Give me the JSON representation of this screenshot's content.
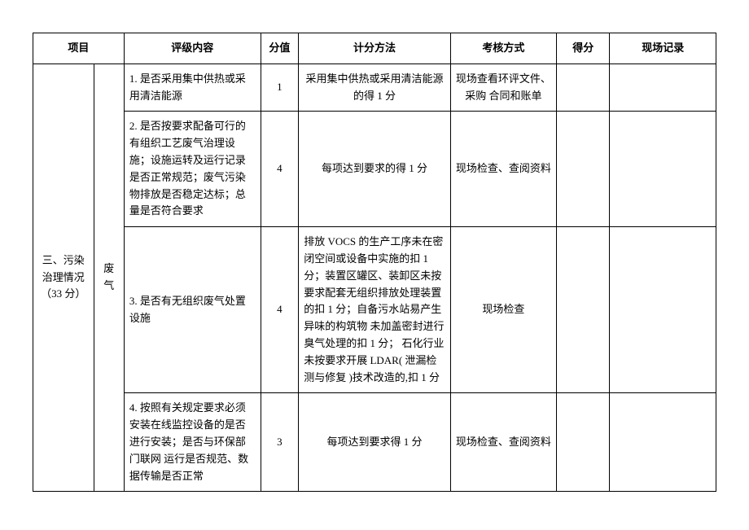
{
  "headers": {
    "project": "项目",
    "content": "评级内容",
    "score_value": "分值",
    "scoring_method": "计分方法",
    "assessment_mode": "考核方式",
    "score": "得分",
    "field_record": "现场记录"
  },
  "project": {
    "name": "三、污染治理情况（33 分）",
    "subcategory": "废气"
  },
  "rows": [
    {
      "content": "1. 是否采用集中供热或采用清洁能源",
      "score_value": "1",
      "scoring_method": "采用集中供热或采用清洁能源的得 1 分",
      "assessment_mode": "现场查看环评文件、采购  合同和账单",
      "score": "",
      "record": ""
    },
    {
      "content": "2. 是否按要求配备可行的有组织工艺废气治理设施；设施运转及运行记录是否正常规范；废气污染物排放是否稳定达标；总量是否符合要求",
      "score_value": "4",
      "scoring_method": "每项达到要求的得 1 分",
      "assessment_mode": "现场检查、查阅资料",
      "score": "",
      "record": ""
    },
    {
      "content": "3. 是否有无组织废气处置设施",
      "score_value": "4",
      "scoring_method": "排放 VOCS 的生产工序未在密闭空间或设备中实施的扣 1 分；装置区罐区、装卸区未按要求配套无组织排放处理装置的扣 1 分；自备污水站易产生异味的构筑物  未加盖密封进行臭气处理的扣 1 分；  石化行业未按要求开展 LDAR( 泄漏检测与修复  )技术改造的,扣 1 分",
      "assessment_mode": "现场检查",
      "score": "",
      "record": ""
    },
    {
      "content": "4. 按照有关规定要求必须安装在线监控设备的是否进行安装；是否与环保部门联网  运行是否规范、数据传输是否正常",
      "score_value": "3",
      "scoring_method": "每项达到要求得 1 分",
      "assessment_mode": "现场检查、查阅资料",
      "score": "",
      "record": ""
    }
  ]
}
